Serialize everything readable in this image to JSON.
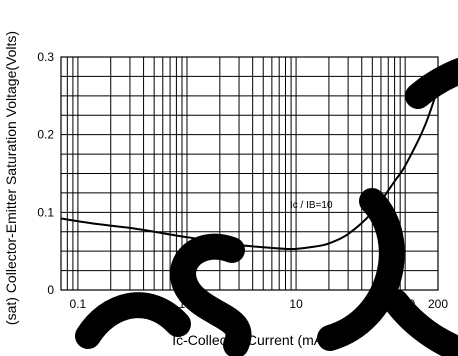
{
  "chart_data": {
    "type": "line",
    "title": "",
    "xlabel": "Ic-Collector Current  (mA)",
    "ylabel": "(sat) Collector-Emitter Saturation Voltage(Volts)",
    "x_scale": "log",
    "xlim": [
      0.07,
      200
    ],
    "ylim": [
      0,
      0.3
    ],
    "x_tick_labels": [
      "0.1",
      "1.0",
      "10",
      "100",
      "200"
    ],
    "x_tick_values": [
      0.1,
      1,
      10,
      100,
      200
    ],
    "y_tick_labels": [
      "0",
      "0.1",
      "0.2",
      "0.3"
    ],
    "y_tick_values": [
      0,
      0.1,
      0.2,
      0.3
    ],
    "y_minor_step": 0.025,
    "grid": true,
    "annotation": "Ic / IB=10",
    "series": [
      {
        "name": "",
        "color": "#000000",
        "x": [
          0.07,
          0.15,
          0.3,
          0.5,
          1,
          2,
          3,
          5,
          8,
          10,
          15,
          20,
          30,
          50,
          80,
          100,
          150,
          200
        ],
        "y": [
          0.092,
          0.085,
          0.08,
          0.075,
          0.068,
          0.062,
          0.058,
          0.055,
          0.053,
          0.053,
          0.056,
          0.06,
          0.072,
          0.1,
          0.14,
          0.16,
          0.21,
          0.26
        ]
      }
    ],
    "watermark_color": "#000000"
  }
}
